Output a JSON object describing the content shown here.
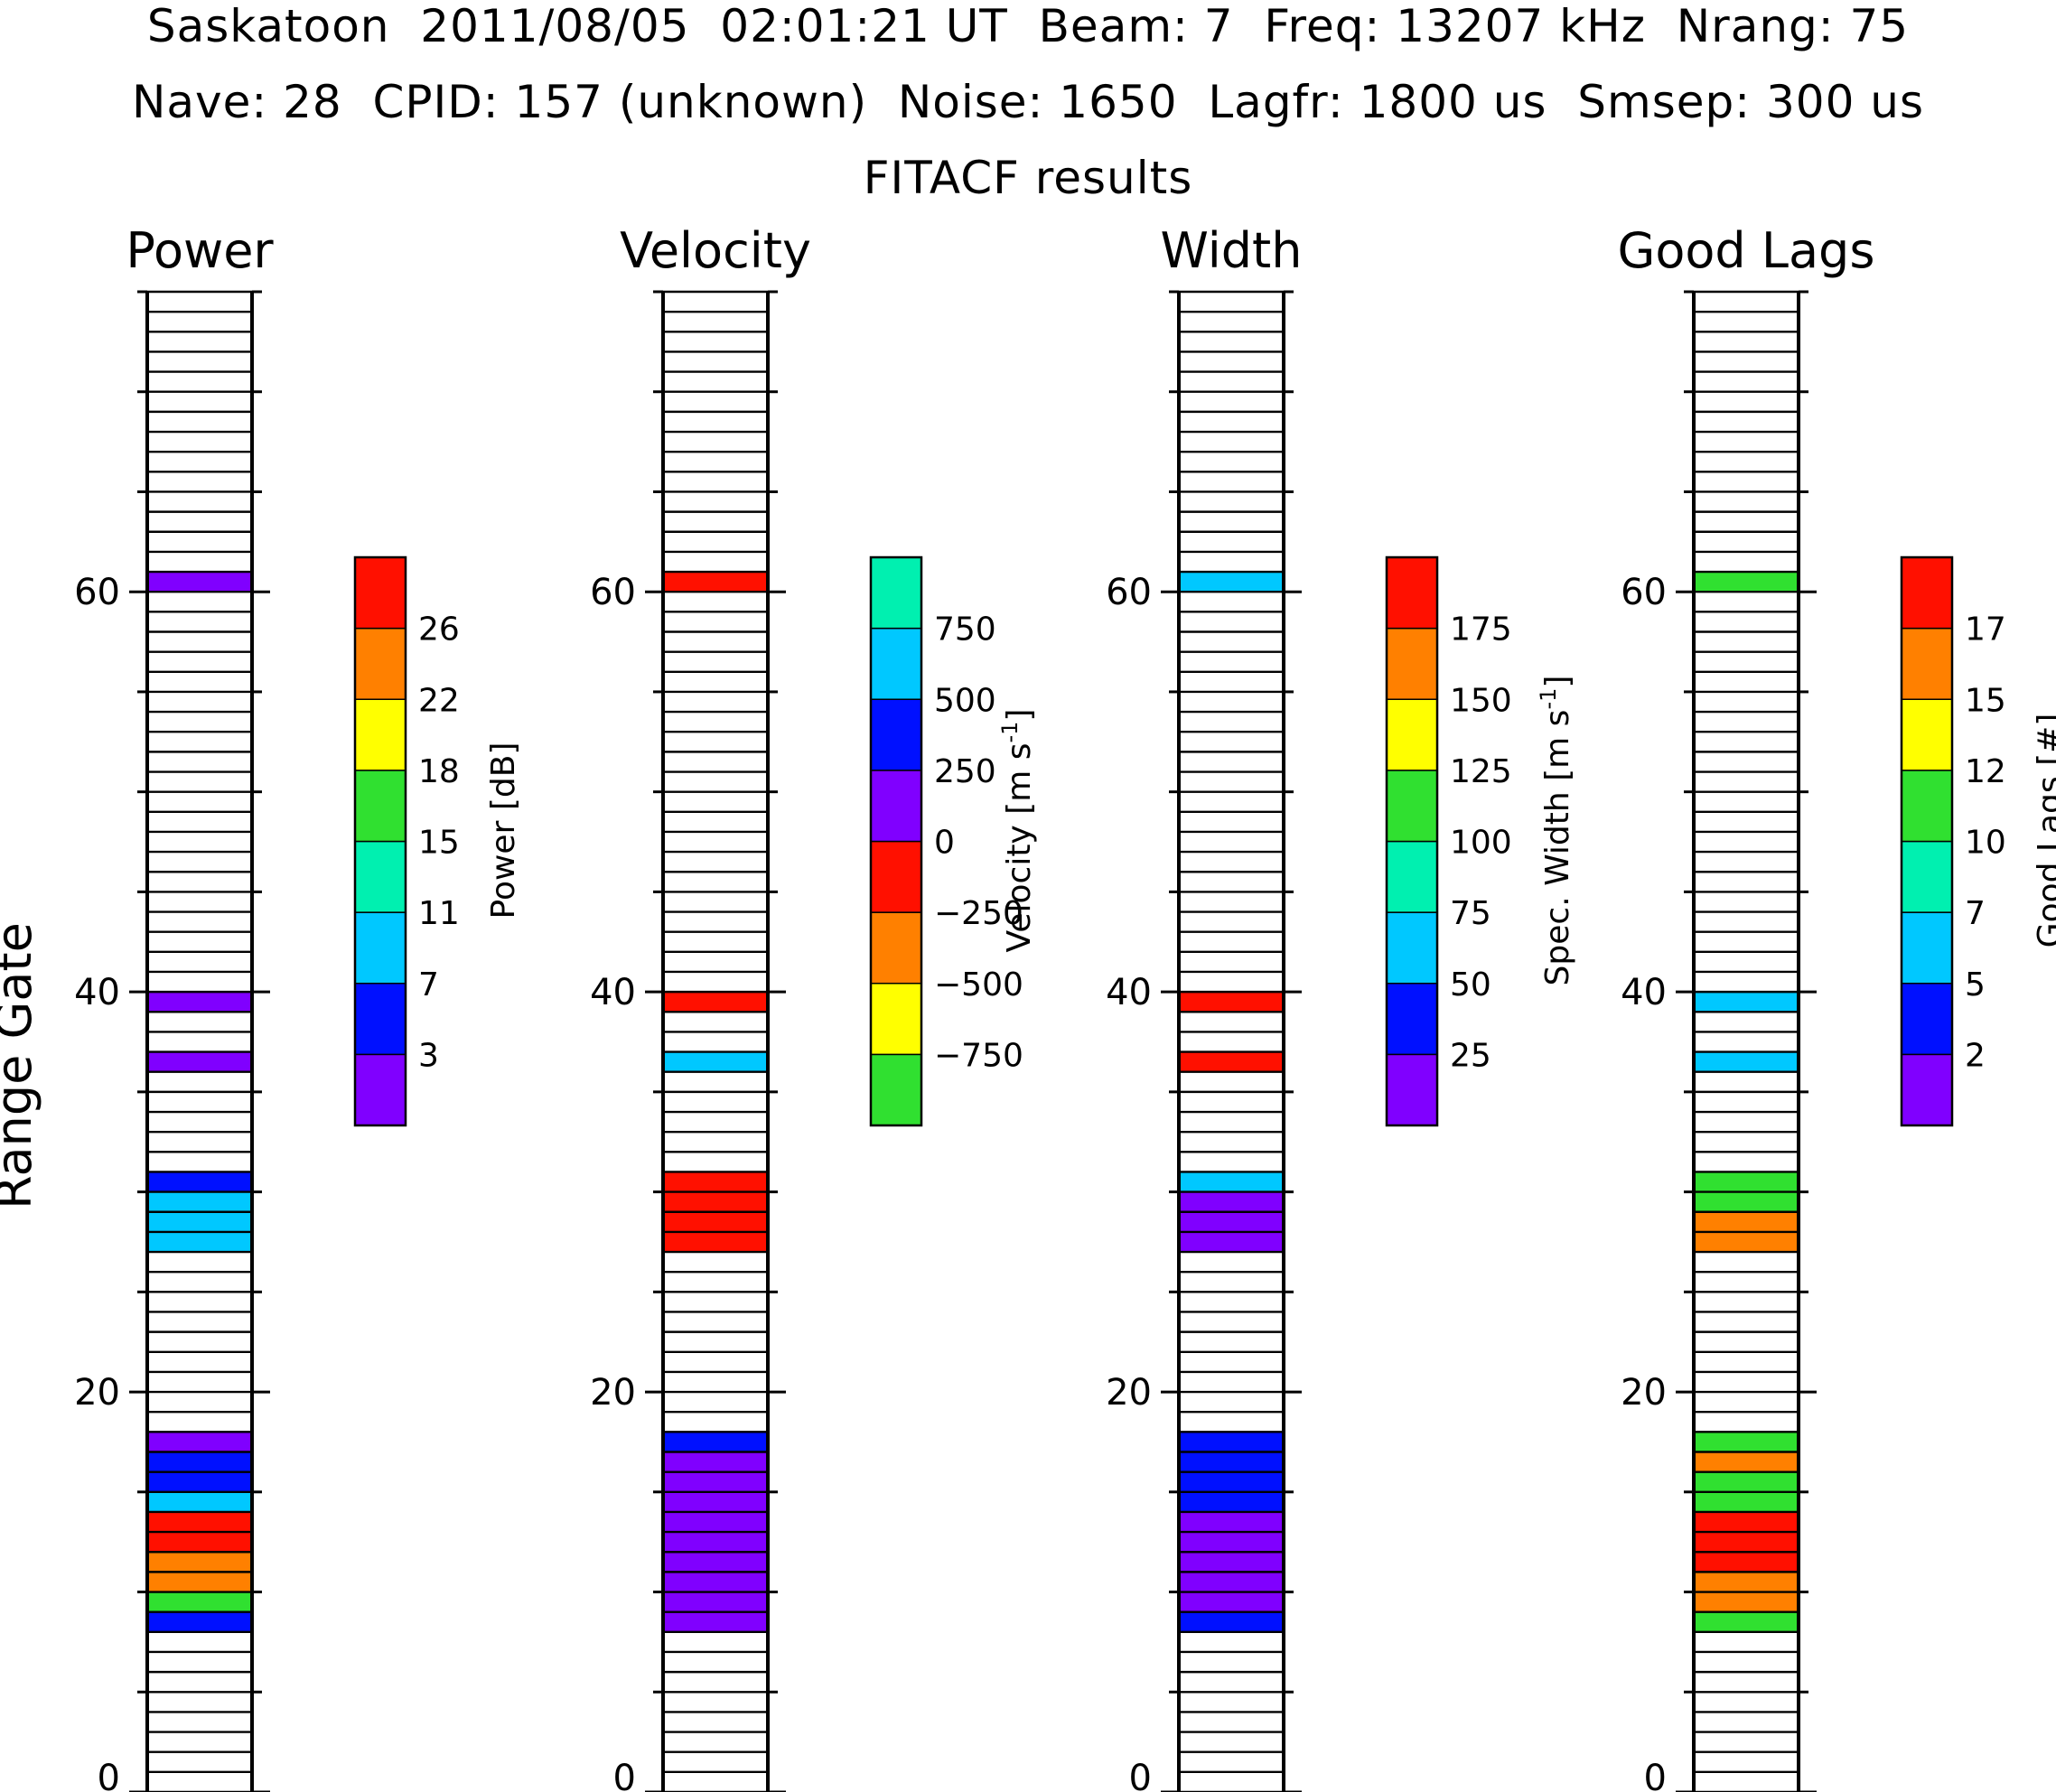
{
  "header": {
    "line1": "Saskatoon  2011/08/05  02:01:21 UT  Beam: 7  Freq: 13207 kHz  Nrang: 75",
    "line2": "Nave: 28  CPID: 157 (unknown)  Noise: 1650  Lagfr: 1800 us  Smsep: 300 us",
    "line3": "FITACF results"
  },
  "chart_data": {
    "type": "heatmap",
    "ylabel": "Range Gate",
    "ylim": [
      0,
      75
    ],
    "y_ticks": [
      "0",
      "20",
      "40",
      "60"
    ],
    "grid": false,
    "palette": [
      "#8000ff",
      "#0010ff",
      "#00c8ff",
      "#00f0b0",
      "#30e030",
      "#ffff00",
      "#ff8000",
      "#ff1000"
    ],
    "panels": [
      {
        "title": "Power",
        "colorbar_title": "Power [dB]",
        "colorbar_colors": [
          "#8000ff",
          "#0010ff",
          "#00c8ff",
          "#00f0b0",
          "#30e030",
          "#ffff00",
          "#ff8000",
          "#ff1000"
        ],
        "colorbar_labels": [
          "3",
          "7",
          "11",
          "15",
          "18",
          "22",
          "26"
        ],
        "cells": [
          {
            "gate": 8,
            "color": "#0010ff"
          },
          {
            "gate": 9,
            "color": "#30e030"
          },
          {
            "gate": 10,
            "color": "#ff8000"
          },
          {
            "gate": 11,
            "color": "#ff8000"
          },
          {
            "gate": 12,
            "color": "#ff1000"
          },
          {
            "gate": 13,
            "color": "#ff1000"
          },
          {
            "gate": 14,
            "color": "#00c8ff"
          },
          {
            "gate": 15,
            "color": "#0010ff"
          },
          {
            "gate": 16,
            "color": "#0010ff"
          },
          {
            "gate": 17,
            "color": "#8000ff"
          },
          {
            "gate": 27,
            "color": "#00c8ff"
          },
          {
            "gate": 28,
            "color": "#00c8ff"
          },
          {
            "gate": 29,
            "color": "#00c8ff"
          },
          {
            "gate": 30,
            "color": "#0010ff"
          },
          {
            "gate": 36,
            "color": "#8000ff"
          },
          {
            "gate": 39,
            "color": "#8000ff"
          },
          {
            "gate": 60,
            "color": "#8000ff"
          }
        ]
      },
      {
        "title": "Velocity",
        "colorbar_title": "Velocity [m s^-1]",
        "colorbar_colors": [
          "#30e030",
          "#ffff00",
          "#ff8000",
          "#ff1000",
          "#8000ff",
          "#0010ff",
          "#00c8ff",
          "#00f0b0"
        ],
        "colorbar_labels": [
          "−750",
          "−500",
          "−250",
          "0",
          "250",
          "500",
          "750"
        ],
        "cells": [
          {
            "gate": 8,
            "color": "#8000ff"
          },
          {
            "gate": 9,
            "color": "#8000ff"
          },
          {
            "gate": 10,
            "color": "#8000ff"
          },
          {
            "gate": 11,
            "color": "#8000ff"
          },
          {
            "gate": 12,
            "color": "#8000ff"
          },
          {
            "gate": 13,
            "color": "#8000ff"
          },
          {
            "gate": 14,
            "color": "#8000ff"
          },
          {
            "gate": 15,
            "color": "#8000ff"
          },
          {
            "gate": 16,
            "color": "#8000ff"
          },
          {
            "gate": 17,
            "color": "#0010ff"
          },
          {
            "gate": 27,
            "color": "#ff1000"
          },
          {
            "gate": 28,
            "color": "#ff1000"
          },
          {
            "gate": 29,
            "color": "#ff1000"
          },
          {
            "gate": 30,
            "color": "#ff1000"
          },
          {
            "gate": 36,
            "color": "#00c8ff"
          },
          {
            "gate": 39,
            "color": "#ff1000"
          },
          {
            "gate": 60,
            "color": "#ff1000"
          }
        ]
      },
      {
        "title": "Width",
        "colorbar_title": "Spec. Width [m s^-1]",
        "colorbar_colors": [
          "#8000ff",
          "#0010ff",
          "#00c8ff",
          "#00f0b0",
          "#30e030",
          "#ffff00",
          "#ff8000",
          "#ff1000"
        ],
        "colorbar_labels": [
          "25",
          "50",
          "75",
          "100",
          "125",
          "150",
          "175"
        ],
        "cells": [
          {
            "gate": 8,
            "color": "#0010ff"
          },
          {
            "gate": 9,
            "color": "#8000ff"
          },
          {
            "gate": 10,
            "color": "#8000ff"
          },
          {
            "gate": 11,
            "color": "#8000ff"
          },
          {
            "gate": 12,
            "color": "#8000ff"
          },
          {
            "gate": 13,
            "color": "#8000ff"
          },
          {
            "gate": 14,
            "color": "#0010ff"
          },
          {
            "gate": 15,
            "color": "#0010ff"
          },
          {
            "gate": 16,
            "color": "#0010ff"
          },
          {
            "gate": 17,
            "color": "#0010ff"
          },
          {
            "gate": 27,
            "color": "#8000ff"
          },
          {
            "gate": 28,
            "color": "#8000ff"
          },
          {
            "gate": 29,
            "color": "#8000ff"
          },
          {
            "gate": 30,
            "color": "#00c8ff"
          },
          {
            "gate": 36,
            "color": "#ff1000"
          },
          {
            "gate": 39,
            "color": "#ff1000"
          },
          {
            "gate": 60,
            "color": "#00c8ff"
          }
        ]
      },
      {
        "title": "Good Lags",
        "colorbar_title": "Good Lags [#]",
        "colorbar_colors": [
          "#8000ff",
          "#0010ff",
          "#00c8ff",
          "#00f0b0",
          "#30e030",
          "#ffff00",
          "#ff8000",
          "#ff1000"
        ],
        "colorbar_labels": [
          "2",
          "5",
          "7",
          "10",
          "12",
          "15",
          "17"
        ],
        "cells": [
          {
            "gate": 8,
            "color": "#30e030"
          },
          {
            "gate": 9,
            "color": "#ff8000"
          },
          {
            "gate": 10,
            "color": "#ff8000"
          },
          {
            "gate": 11,
            "color": "#ff1000"
          },
          {
            "gate": 12,
            "color": "#ff1000"
          },
          {
            "gate": 13,
            "color": "#ff1000"
          },
          {
            "gate": 14,
            "color": "#30e030"
          },
          {
            "gate": 15,
            "color": "#30e030"
          },
          {
            "gate": 16,
            "color": "#ff8000"
          },
          {
            "gate": 17,
            "color": "#30e030"
          },
          {
            "gate": 27,
            "color": "#ff8000"
          },
          {
            "gate": 28,
            "color": "#ff8000"
          },
          {
            "gate": 29,
            "color": "#30e030"
          },
          {
            "gate": 30,
            "color": "#30e030"
          },
          {
            "gate": 36,
            "color": "#00c8ff"
          },
          {
            "gate": 39,
            "color": "#00c8ff"
          },
          {
            "gate": 60,
            "color": "#30e030"
          }
        ]
      }
    ]
  }
}
